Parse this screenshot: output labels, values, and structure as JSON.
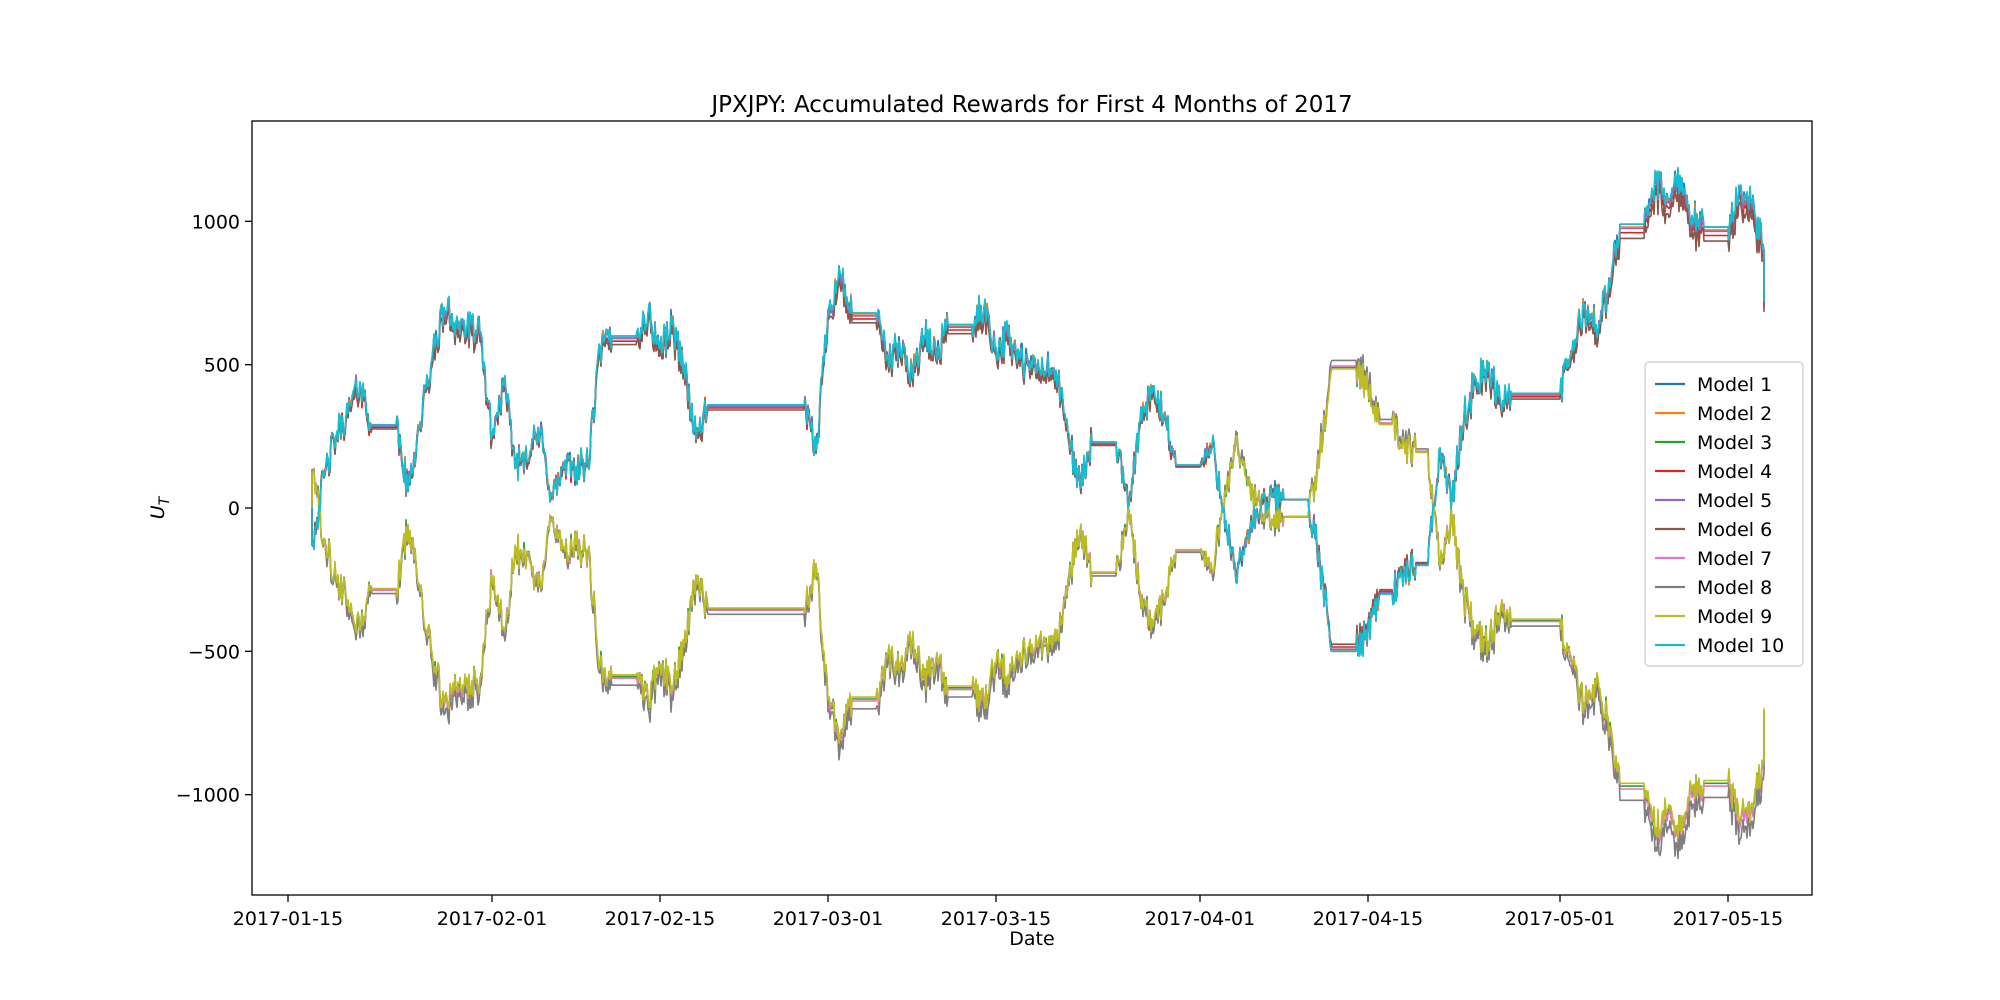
{
  "chart_data": {
    "type": "line",
    "title": "JPXJPY: Accumulated Rewards for First 4 Months of 2017",
    "xlabel": "Date",
    "ylabel": "U_T",
    "ylabel_main": "U",
    "ylabel_sub": "T",
    "x_type": "date",
    "xlim": [
      "2017-01-12",
      "2017-05-22"
    ],
    "ylim": [
      -1350,
      1350
    ],
    "x_ticks": [
      "2017-01-15",
      "2017-02-01",
      "2017-02-15",
      "2017-03-01",
      "2017-03-15",
      "2017-04-01",
      "2017-04-15",
      "2017-05-01",
      "2017-05-15"
    ],
    "y_ticks": [
      -1000,
      -500,
      0,
      500,
      1000
    ],
    "y_tick_labels": [
      "−1000",
      "−500",
      "0",
      "500",
      "1000"
    ],
    "grid": false,
    "legend_position": "right",
    "series": [
      {
        "name": "Model 1",
        "color": "#1f77b4",
        "sign": 1,
        "scale": 1.0
      },
      {
        "name": "Model 2",
        "color": "#ff7f0e",
        "sign": 1,
        "scale": 0.99
      },
      {
        "name": "Model 3",
        "color": "#2ca02c",
        "sign": -1,
        "scale": 0.98
      },
      {
        "name": "Model 4",
        "color": "#d62728",
        "sign": 1,
        "scale": 0.97
      },
      {
        "name": "Model 5",
        "color": "#9467bd",
        "sign": 1,
        "scale": 0.985
      },
      {
        "name": "Model 6",
        "color": "#8c564b",
        "sign": 1,
        "scale": 0.95
      },
      {
        "name": "Model 7",
        "color": "#e377c2",
        "sign": -1,
        "scale": 0.99
      },
      {
        "name": "Model 8",
        "color": "#7f7f7f",
        "sign": -1,
        "scale": 1.03
      },
      {
        "name": "Model 9",
        "color": "#bcbd22",
        "sign": -1,
        "scale": 0.97
      },
      {
        "name": "Model 10",
        "color": "#17becf",
        "sign": 1,
        "scale": 1.0
      }
    ],
    "base_path": [
      [
        "2017-01-17",
        0
      ],
      [
        "2017-01-17",
        -130
      ],
      [
        "2017-01-18",
        110
      ],
      [
        "2017-01-19",
        250
      ],
      [
        "2017-01-20",
        330
      ],
      [
        "2017-01-21",
        440
      ],
      [
        "2017-01-22",
        290
      ],
      [
        "2017-01-24",
        290
      ],
      [
        "2017-01-25",
        60
      ],
      [
        "2017-01-26",
        300
      ],
      [
        "2017-01-27",
        520
      ],
      [
        "2017-01-28",
        700
      ],
      [
        "2017-01-29",
        650
      ],
      [
        "2017-01-31",
        610
      ],
      [
        "2017-02-01",
        250
      ],
      [
        "2017-02-02",
        430
      ],
      [
        "2017-02-03",
        150
      ],
      [
        "2017-02-05",
        260
      ],
      [
        "2017-02-06",
        40
      ],
      [
        "2017-02-07",
        140
      ],
      [
        "2017-02-09",
        150
      ],
      [
        "2017-02-10",
        560
      ],
      [
        "2017-02-11",
        600
      ],
      [
        "2017-02-13",
        600
      ],
      [
        "2017-02-14",
        680
      ],
      [
        "2017-02-15",
        560
      ],
      [
        "2017-02-16",
        640
      ],
      [
        "2017-02-17",
        500
      ],
      [
        "2017-02-18",
        240
      ],
      [
        "2017-02-19",
        360
      ],
      [
        "2017-02-27",
        360
      ],
      [
        "2017-02-28",
        200
      ],
      [
        "2017-03-01",
        690
      ],
      [
        "2017-03-02",
        820
      ],
      [
        "2017-03-03",
        680
      ],
      [
        "2017-03-05",
        680
      ],
      [
        "2017-03-06",
        520
      ],
      [
        "2017-03-07",
        560
      ],
      [
        "2017-03-08",
        480
      ],
      [
        "2017-03-09",
        600
      ],
      [
        "2017-03-10",
        540
      ],
      [
        "2017-03-11",
        640
      ],
      [
        "2017-03-13",
        640
      ],
      [
        "2017-03-14",
        700
      ],
      [
        "2017-03-15",
        560
      ],
      [
        "2017-03-16",
        600
      ],
      [
        "2017-03-17",
        520
      ],
      [
        "2017-03-18",
        490
      ],
      [
        "2017-03-20",
        480
      ],
      [
        "2017-03-21",
        260
      ],
      [
        "2017-03-22",
        80
      ],
      [
        "2017-03-23",
        230
      ],
      [
        "2017-03-25",
        230
      ],
      [
        "2017-03-26",
        0
      ],
      [
        "2017-03-27",
        300
      ],
      [
        "2017-03-28",
        400
      ],
      [
        "2017-03-29",
        330
      ],
      [
        "2017-03-30",
        150
      ],
      [
        "2017-04-01",
        150
      ],
      [
        "2017-04-02",
        220
      ],
      [
        "2017-04-03",
        0
      ],
      [
        "2017-04-04",
        -260
      ],
      [
        "2017-04-05",
        -80
      ],
      [
        "2017-04-06",
        -10
      ],
      [
        "2017-04-07",
        40
      ],
      [
        "2017-04-08",
        30
      ],
      [
        "2017-04-10",
        30
      ],
      [
        "2017-04-11",
        -200
      ],
      [
        "2017-04-12",
        -500
      ],
      [
        "2017-04-14",
        -500
      ],
      [
        "2017-04-15",
        -420
      ],
      [
        "2017-04-16",
        -300
      ],
      [
        "2017-04-17",
        -300
      ],
      [
        "2017-04-18",
        -230
      ],
      [
        "2017-04-19",
        -200
      ],
      [
        "2017-04-20",
        -200
      ],
      [
        "2017-04-21",
        210
      ],
      [
        "2017-04-22",
        30
      ],
      [
        "2017-04-23",
        320
      ],
      [
        "2017-04-24",
        450
      ],
      [
        "2017-04-25",
        480
      ],
      [
        "2017-04-26",
        380
      ],
      [
        "2017-04-27",
        400
      ],
      [
        "2017-04-29",
        400
      ],
      [
        "2017-05-01",
        400
      ],
      [
        "2017-05-02",
        550
      ],
      [
        "2017-05-03",
        700
      ],
      [
        "2017-05-04",
        640
      ],
      [
        "2017-05-05",
        750
      ],
      [
        "2017-05-06",
        990
      ],
      [
        "2017-05-08",
        990
      ],
      [
        "2017-05-09",
        1150
      ],
      [
        "2017-05-10",
        1080
      ],
      [
        "2017-05-11",
        1160
      ],
      [
        "2017-05-12",
        1020
      ],
      [
        "2017-05-13",
        980
      ],
      [
        "2017-05-15",
        980
      ],
      [
        "2017-05-16",
        1120
      ],
      [
        "2017-05-17",
        1060
      ],
      [
        "2017-05-18",
        900
      ],
      [
        "2017-05-18",
        720
      ]
    ]
  }
}
